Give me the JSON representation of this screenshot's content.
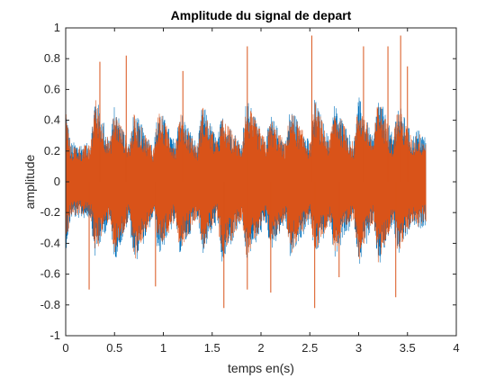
{
  "chart_data": {
    "type": "line",
    "title": "Amplitude du signal de depart",
    "xlabel": "temps en(s)",
    "ylabel": "amplitude",
    "xlim": [
      0,
      4
    ],
    "ylim": [
      -1,
      1
    ],
    "x_ticks": [
      0,
      0.5,
      1,
      1.5,
      2,
      2.5,
      3,
      3.5,
      4
    ],
    "x_tick_labels": [
      "0",
      "0.5",
      "1",
      "1.5",
      "2",
      "2.5",
      "3",
      "3.5",
      "4"
    ],
    "y_ticks": [
      -1,
      -0.8,
      -0.6,
      -0.4,
      -0.2,
      0,
      0.2,
      0.4,
      0.6,
      0.8,
      1
    ],
    "y_tick_labels": [
      "-1",
      "-0.8",
      "-0.6",
      "-0.4",
      "-0.2",
      "0",
      "0.2",
      "0.4",
      "0.6",
      "0.8",
      "1"
    ],
    "grid": false,
    "series": [
      {
        "color": "#0072BD",
        "x": [
          0,
          0.05,
          0.25,
          0.3,
          0.45,
          0.5,
          0.65,
          0.7,
          0.9,
          0.95,
          1.12,
          1.17,
          1.35,
          1.4,
          1.55,
          1.6,
          1.8,
          1.85,
          2.05,
          2.1,
          2.25,
          2.3,
          2.5,
          2.55,
          2.7,
          2.75,
          2.95,
          3.0,
          3.15,
          3.2,
          3.35,
          3.4,
          3.55,
          3.6,
          3.69
        ],
        "ymax": [
          0.52,
          0.26,
          0.25,
          0.58,
          0.28,
          0.5,
          0.26,
          0.46,
          0.24,
          0.5,
          0.26,
          0.48,
          0.24,
          0.52,
          0.28,
          0.44,
          0.26,
          0.55,
          0.28,
          0.44,
          0.26,
          0.5,
          0.26,
          0.55,
          0.28,
          0.52,
          0.26,
          0.56,
          0.28,
          0.58,
          0.3,
          0.53,
          0.3,
          0.35,
          0.3
        ],
        "ymin": [
          -0.45,
          -0.24,
          -0.24,
          -0.5,
          -0.26,
          -0.52,
          -0.26,
          -0.55,
          -0.24,
          -0.5,
          -0.26,
          -0.48,
          -0.24,
          -0.48,
          -0.26,
          -0.55,
          -0.26,
          -0.52,
          -0.28,
          -0.46,
          -0.26,
          -0.52,
          -0.26,
          -0.5,
          -0.28,
          -0.5,
          -0.26,
          -0.55,
          -0.28,
          -0.58,
          -0.28,
          -0.5,
          -0.28,
          -0.32,
          -0.28
        ]
      },
      {
        "color": "#D95319",
        "x": [
          0,
          0.05,
          0.25,
          0.3,
          0.45,
          0.5,
          0.65,
          0.7,
          0.9,
          0.95,
          1.12,
          1.17,
          1.35,
          1.4,
          1.55,
          1.6,
          1.8,
          1.85,
          2.05,
          2.1,
          2.25,
          2.3,
          2.5,
          2.55,
          2.7,
          2.75,
          2.95,
          3.0,
          3.15,
          3.2,
          3.35,
          3.4,
          3.55,
          3.6,
          3.69
        ],
        "ymax": [
          0.5,
          0.24,
          0.24,
          0.56,
          0.26,
          0.48,
          0.25,
          0.44,
          0.23,
          0.48,
          0.25,
          0.46,
          0.23,
          0.5,
          0.26,
          0.42,
          0.25,
          0.52,
          0.27,
          0.42,
          0.25,
          0.48,
          0.25,
          0.53,
          0.27,
          0.5,
          0.25,
          0.54,
          0.27,
          0.56,
          0.28,
          0.5,
          0.28,
          0.33,
          0.28
        ],
        "ymin": [
          -0.42,
          -0.22,
          -0.22,
          -0.47,
          -0.24,
          -0.5,
          -0.24,
          -0.52,
          -0.22,
          -0.47,
          -0.24,
          -0.45,
          -0.22,
          -0.45,
          -0.24,
          -0.52,
          -0.24,
          -0.49,
          -0.26,
          -0.43,
          -0.24,
          -0.49,
          -0.24,
          -0.47,
          -0.26,
          -0.47,
          -0.24,
          -0.52,
          -0.26,
          -0.55,
          -0.26,
          -0.47,
          -0.26,
          -0.3,
          -0.26
        ],
        "spikes": [
          [
            0.24,
            -0.7
          ],
          [
            0.35,
            0.78
          ],
          [
            0.62,
            0.82
          ],
          [
            1.2,
            0.72
          ],
          [
            1.62,
            -0.82
          ],
          [
            1.86,
            0.88
          ],
          [
            2.52,
            0.95
          ],
          [
            2.55,
            -0.82
          ],
          [
            3.05,
            0.88
          ],
          [
            3.3,
            0.88
          ],
          [
            3.43,
            0.95
          ],
          [
            3.5,
            0.75
          ],
          [
            1.86,
            -0.7
          ],
          [
            3.38,
            -0.75
          ],
          [
            0.92,
            -0.68
          ],
          [
            2.1,
            -0.72
          ],
          [
            2.8,
            -0.62
          ]
        ]
      }
    ]
  }
}
